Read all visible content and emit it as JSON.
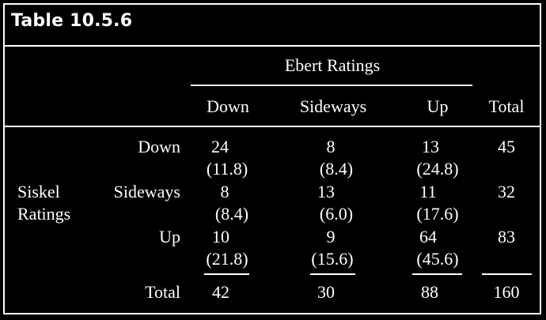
{
  "title": "Table 10.5.6",
  "header": {
    "group_label": "Ebert Ratings",
    "columns": [
      "Down",
      "Sideways",
      "Up"
    ],
    "total_label": "Total"
  },
  "row_group_label_line1": "Siskel",
  "row_group_label_line2": "Ratings",
  "rows": [
    {
      "label": "Down",
      "cells": [
        {
          "obs": "24",
          "exp": "(11.8)"
        },
        {
          "obs": "8",
          "exp": "(8.4)"
        },
        {
          "obs": "13",
          "exp": "(24.8)"
        }
      ],
      "total": "45"
    },
    {
      "label": "Sideways",
      "cells": [
        {
          "obs": "8",
          "exp": "(8.4)"
        },
        {
          "obs": "13",
          "exp": "(6.0)"
        },
        {
          "obs": "11",
          "exp": "(17.6)"
        }
      ],
      "total": "32"
    },
    {
      "label": "Up",
      "cells": [
        {
          "obs": "10",
          "exp": "(21.8)"
        },
        {
          "obs": "9",
          "exp": "(15.6)"
        },
        {
          "obs": "64",
          "exp": "(45.6)"
        }
      ],
      "total": "83"
    }
  ],
  "totals_row": {
    "label": "Total",
    "values": [
      "42",
      "30",
      "88"
    ],
    "grand_total": "160"
  }
}
